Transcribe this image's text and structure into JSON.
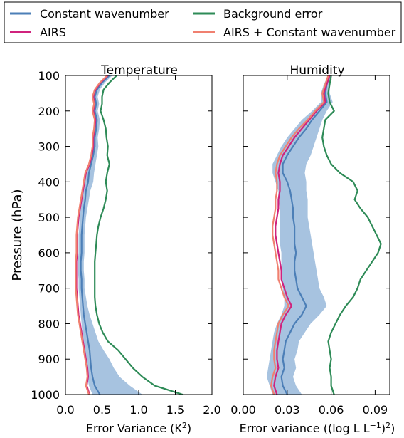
{
  "legend": {
    "placement": "top",
    "entries": [
      {
        "label": "Constant wavenumber",
        "color": "#4c7fb7"
      },
      {
        "label": "Background error",
        "color": "#2e8b57"
      },
      {
        "label": "AIRS",
        "color": "#d0237d"
      },
      {
        "label": "AIRS + Constant wavenumber",
        "color": "#f08070"
      }
    ]
  },
  "shared_y": {
    "label": "Pressure (hPa)",
    "range": [
      1000,
      100
    ],
    "ticks": [
      100,
      200,
      300,
      400,
      500,
      600,
      700,
      800,
      900,
      1000
    ]
  },
  "colors": {
    "constant": "#4c7fb7",
    "band": "#a7c3e0",
    "background": "#2e8b57",
    "airs": "#d0237d",
    "combined": "#f08070"
  },
  "chart_data": [
    {
      "type": "line",
      "title": "Temperature",
      "xlabel": "Error Variance (K",
      "xlabel_sup": "2",
      "xlabel_end": ")",
      "xlim": [
        0,
        2.0
      ],
      "xticks": [
        "0.0",
        "0.5",
        "1.0",
        "1.5",
        "2.0"
      ],
      "xtick_values": [
        0,
        0.5,
        1.0,
        1.5,
        2.0
      ],
      "pressure": [
        100,
        120,
        140,
        160,
        180,
        200,
        225,
        250,
        275,
        300,
        325,
        350,
        375,
        400,
        425,
        450,
        475,
        500,
        525,
        550,
        575,
        600,
        625,
        650,
        675,
        700,
        725,
        750,
        775,
        800,
        825,
        850,
        875,
        900,
        925,
        950,
        975,
        1000
      ],
      "series": [
        {
          "name": "Constant wavenumber",
          "key": "constant",
          "values": [
            0.6,
            0.5,
            0.43,
            0.4,
            0.42,
            0.4,
            0.43,
            0.42,
            0.4,
            0.4,
            0.38,
            0.35,
            0.32,
            0.31,
            0.28,
            0.27,
            0.25,
            0.24,
            0.23,
            0.22,
            0.22,
            0.22,
            0.21,
            0.21,
            0.22,
            0.22,
            0.23,
            0.24,
            0.25,
            0.27,
            0.29,
            0.31,
            0.33,
            0.34,
            0.35,
            0.37,
            0.4,
            0.47
          ],
          "band_low": [
            0.57,
            0.47,
            0.4,
            0.37,
            0.39,
            0.37,
            0.4,
            0.39,
            0.37,
            0.37,
            0.35,
            0.32,
            0.27,
            0.24,
            0.22,
            0.21,
            0.2,
            0.19,
            0.19,
            0.18,
            0.18,
            0.18,
            0.17,
            0.17,
            0.18,
            0.18,
            0.19,
            0.2,
            0.21,
            0.22,
            0.23,
            0.25,
            0.26,
            0.27,
            0.28,
            0.3,
            0.32,
            0.37
          ],
          "band_high": [
            0.64,
            0.54,
            0.47,
            0.44,
            0.46,
            0.44,
            0.47,
            0.46,
            0.44,
            0.45,
            0.43,
            0.41,
            0.39,
            0.38,
            0.34,
            0.32,
            0.3,
            0.28,
            0.27,
            0.26,
            0.26,
            0.26,
            0.25,
            0.25,
            0.26,
            0.26,
            0.28,
            0.3,
            0.33,
            0.37,
            0.41,
            0.45,
            0.52,
            0.6,
            0.66,
            0.74,
            0.88,
            1.05
          ]
        },
        {
          "name": "Background error",
          "key": "background",
          "values": [
            0.7,
            0.6,
            0.52,
            0.5,
            0.5,
            0.48,
            0.52,
            0.55,
            0.56,
            0.58,
            0.57,
            0.6,
            0.57,
            0.55,
            0.57,
            0.55,
            0.52,
            0.48,
            0.45,
            0.43,
            0.42,
            0.41,
            0.4,
            0.4,
            0.4,
            0.4,
            0.4,
            0.41,
            0.43,
            0.46,
            0.51,
            0.58,
            0.72,
            0.82,
            0.92,
            1.05,
            1.22,
            1.6
          ]
        },
        {
          "name": "AIRS",
          "key": "airs",
          "values": [
            0.58,
            0.48,
            0.41,
            0.38,
            0.4,
            0.38,
            0.41,
            0.4,
            0.38,
            0.38,
            0.36,
            0.33,
            0.28,
            0.26,
            0.24,
            0.22,
            0.2,
            0.18,
            0.17,
            0.16,
            0.16,
            0.16,
            0.15,
            0.15,
            0.15,
            0.15,
            0.16,
            0.17,
            0.18,
            0.2,
            0.22,
            0.24,
            0.26,
            0.28,
            0.3,
            0.31,
            0.29,
            0.33
          ]
        },
        {
          "name": "AIRS + Constant wavenumber",
          "key": "combined",
          "values": [
            0.57,
            0.47,
            0.4,
            0.37,
            0.39,
            0.37,
            0.4,
            0.39,
            0.37,
            0.37,
            0.35,
            0.32,
            0.27,
            0.25,
            0.23,
            0.21,
            0.19,
            0.17,
            0.16,
            0.15,
            0.15,
            0.15,
            0.14,
            0.14,
            0.14,
            0.14,
            0.15,
            0.16,
            0.17,
            0.19,
            0.21,
            0.23,
            0.25,
            0.27,
            0.29,
            0.3,
            0.28,
            0.32
          ]
        }
      ]
    },
    {
      "type": "line",
      "title": "Humidity",
      "xlabel": "Error variance ((log L L",
      "xlabel_sup": "−1",
      "xlabel_end": ")",
      "xlabel_sup2": "2",
      "xlabel_end2": ")",
      "xlim": [
        0,
        0.1
      ],
      "xticks": [
        "0.00",
        "0.03",
        "0.06",
        "0.09"
      ],
      "xtick_values": [
        0,
        0.03,
        0.06,
        0.09
      ],
      "pressure": [
        100,
        125,
        150,
        175,
        200,
        225,
        250,
        275,
        300,
        325,
        350,
        375,
        400,
        425,
        450,
        475,
        500,
        525,
        550,
        575,
        600,
        625,
        650,
        675,
        700,
        725,
        750,
        775,
        800,
        825,
        850,
        875,
        900,
        925,
        950,
        975,
        1000
      ],
      "series": [
        {
          "name": "Constant wavenumber",
          "key": "constant",
          "values": [
            0.059,
            0.057,
            0.056,
            0.057,
            0.052,
            0.047,
            0.043,
            0.038,
            0.034,
            0.03,
            0.027,
            0.027,
            0.03,
            0.032,
            0.033,
            0.034,
            0.034,
            0.035,
            0.035,
            0.035,
            0.036,
            0.035,
            0.035,
            0.036,
            0.037,
            0.04,
            0.043,
            0.04,
            0.035,
            0.032,
            0.029,
            0.028,
            0.027,
            0.028,
            0.026,
            0.027,
            0.03
          ],
          "band_low": [
            0.058,
            0.055,
            0.053,
            0.053,
            0.047,
            0.04,
            0.035,
            0.03,
            0.026,
            0.023,
            0.02,
            0.02,
            0.022,
            0.024,
            0.024,
            0.025,
            0.025,
            0.025,
            0.025,
            0.025,
            0.026,
            0.026,
            0.026,
            0.026,
            0.027,
            0.028,
            0.028,
            0.026,
            0.023,
            0.021,
            0.02,
            0.019,
            0.018,
            0.017,
            0.016,
            0.018,
            0.02
          ],
          "band_high": [
            0.06,
            0.059,
            0.059,
            0.061,
            0.057,
            0.054,
            0.052,
            0.05,
            0.048,
            0.046,
            0.043,
            0.042,
            0.043,
            0.043,
            0.044,
            0.044,
            0.044,
            0.045,
            0.046,
            0.047,
            0.048,
            0.049,
            0.05,
            0.051,
            0.052,
            0.055,
            0.057,
            0.052,
            0.046,
            0.042,
            0.038,
            0.037,
            0.035,
            0.036,
            0.034,
            0.036,
            0.04
          ]
        },
        {
          "name": "Background error",
          "key": "background",
          "values": [
            0.06,
            0.059,
            0.058,
            0.059,
            0.062,
            0.056,
            0.055,
            0.054,
            0.055,
            0.057,
            0.06,
            0.066,
            0.075,
            0.078,
            0.076,
            0.08,
            0.085,
            0.088,
            0.091,
            0.094,
            0.092,
            0.088,
            0.084,
            0.08,
            0.078,
            0.075,
            0.07,
            0.066,
            0.063,
            0.06,
            0.058,
            0.059,
            0.06,
            0.059,
            0.06,
            0.06,
            0.062
          ]
        },
        {
          "name": "AIRS",
          "key": "airs",
          "values": [
            0.059,
            0.057,
            0.055,
            0.056,
            0.05,
            0.045,
            0.04,
            0.035,
            0.031,
            0.027,
            0.025,
            0.024,
            0.025,
            0.025,
            0.024,
            0.024,
            0.023,
            0.022,
            0.022,
            0.023,
            0.024,
            0.025,
            0.026,
            0.026,
            0.028,
            0.03,
            0.033,
            0.029,
            0.026,
            0.025,
            0.024,
            0.023,
            0.023,
            0.024,
            0.022,
            0.021,
            0.023
          ]
        },
        {
          "name": "AIRS + Constant wavenumber",
          "key": "combined",
          "values": [
            0.058,
            0.056,
            0.054,
            0.055,
            0.049,
            0.044,
            0.038,
            0.033,
            0.029,
            0.025,
            0.023,
            0.022,
            0.023,
            0.023,
            0.022,
            0.022,
            0.021,
            0.02,
            0.02,
            0.021,
            0.022,
            0.023,
            0.024,
            0.024,
            0.026,
            0.028,
            0.031,
            0.027,
            0.024,
            0.023,
            0.022,
            0.021,
            0.021,
            0.022,
            0.02,
            0.019,
            0.021
          ]
        }
      ]
    }
  ]
}
